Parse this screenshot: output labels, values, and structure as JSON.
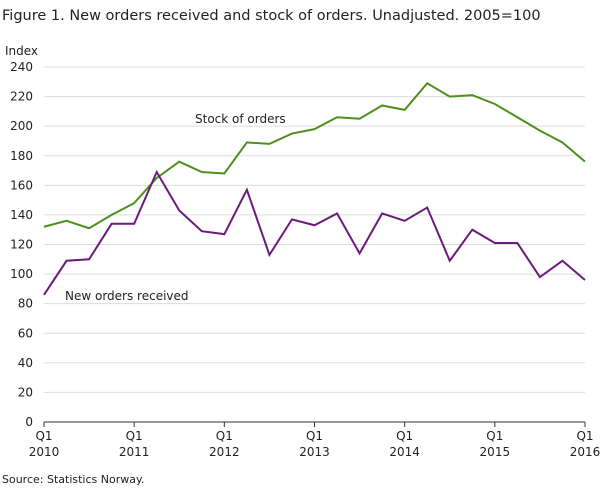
{
  "chart_data": {
    "type": "line",
    "title": "Figure 1. New orders received and stock of orders. Unadjusted. 2005=100",
    "y_label": "Index",
    "source": "Source: Statistics Norway.",
    "categories": [
      "Q1 2010",
      null,
      null,
      null,
      "Q1 2011",
      null,
      null,
      null,
      "Q1 2012",
      null,
      null,
      null,
      "Q1 2013",
      null,
      null,
      null,
      "Q1 2014",
      null,
      null,
      null,
      "Q1 2015",
      null,
      null,
      null,
      "Q1 2016"
    ],
    "series": [
      {
        "name": "Stock of orders",
        "color": "#4e8f1e",
        "values": [
          132,
          136,
          131,
          140,
          148,
          165,
          176,
          169,
          168,
          189,
          188,
          195,
          198,
          206,
          205,
          214,
          211,
          229,
          220,
          221,
          215,
          206,
          197,
          189,
          176
        ]
      },
      {
        "name": "New orders received",
        "color": "#6a1b7a",
        "values": [
          86,
          109,
          110,
          134,
          134,
          169,
          143,
          129,
          127,
          157,
          113,
          137,
          133,
          141,
          114,
          141,
          136,
          145,
          109,
          130,
          121,
          121,
          98,
          109,
          96
        ]
      }
    ],
    "ylim": [
      0,
      240
    ],
    "yticks": [
      0,
      20,
      40,
      60,
      80,
      100,
      120,
      140,
      160,
      180,
      200,
      220,
      240
    ],
    "grid": true
  }
}
